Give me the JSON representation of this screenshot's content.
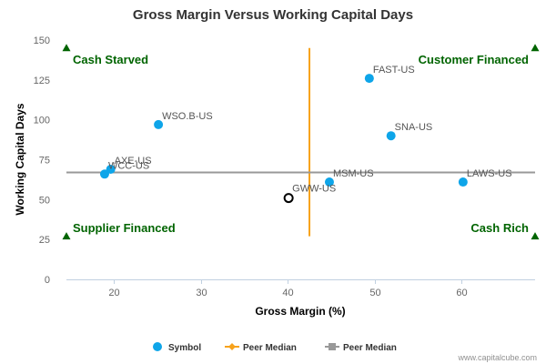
{
  "chart_data": {
    "type": "scatter",
    "title": "Gross Margin Versus Working Capital Days",
    "xlabel": "Gross Margin (%)",
    "ylabel": "Working Capital Days",
    "xlim": [
      14.5,
      68.5
    ],
    "ylim": [
      0,
      150
    ],
    "xticks": [
      20,
      30,
      40,
      50,
      60
    ],
    "yticks": [
      0,
      25,
      50,
      75,
      100,
      125,
      150
    ],
    "grid": false,
    "legend_position": "bottom",
    "points": [
      {
        "label": "FAST-US",
        "x": 49.4,
        "y": 126
      },
      {
        "label": "WSO.B-US",
        "x": 25.1,
        "y": 97
      },
      {
        "label": "SNA-US",
        "x": 51.9,
        "y": 90
      },
      {
        "label": "AXE-US",
        "x": 19.6,
        "y": 69
      },
      {
        "label": "WCC-US",
        "x": 18.9,
        "y": 66
      },
      {
        "label": "MSM-US",
        "x": 44.8,
        "y": 61
      },
      {
        "label": "LAWS-US",
        "x": 60.2,
        "y": 61
      }
    ],
    "highlight": {
      "label": "GWW-US",
      "x": 40.1,
      "y": 51
    },
    "peer_median_x": 42.5,
    "peer_median_y": 67,
    "quadrants": [
      {
        "label": "Cash Starved",
        "position": "top-left"
      },
      {
        "label": "Customer Financed",
        "position": "top-right"
      },
      {
        "label": "Supplier Financed",
        "position": "bottom-left"
      },
      {
        "label": "Cash Rich",
        "position": "bottom-right"
      }
    ],
    "legend": [
      {
        "label": "Symbol",
        "marker": "circle",
        "color": "#0ea5e9"
      },
      {
        "label": "Peer Median",
        "marker": "diamond-line",
        "color": "#f7a21b"
      },
      {
        "label": "Peer Median",
        "marker": "square-line",
        "color": "#999999"
      }
    ],
    "colors": {
      "points": "#0ea5e9",
      "median_x": "#f7a21b",
      "median_y": "#999999",
      "quadrant": "#006400",
      "highlight_stroke": "#000000"
    }
  },
  "credit": "www.capitalcube.com"
}
